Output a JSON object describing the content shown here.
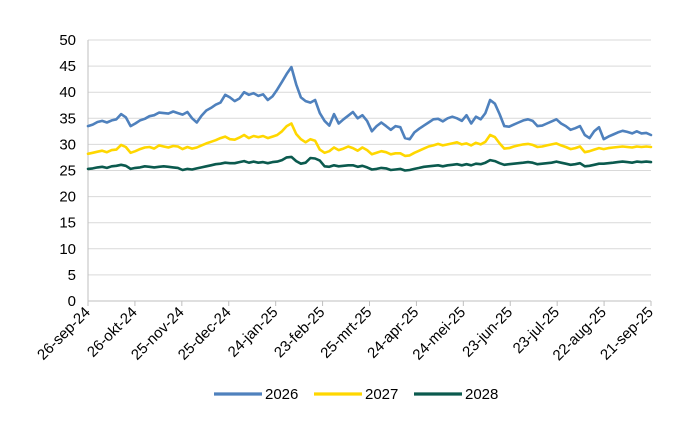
{
  "chart_data": {
    "type": "line",
    "title": "",
    "xlabel": "",
    "ylabel": "",
    "ylim": [
      0,
      50
    ],
    "yticks": [
      0,
      5,
      10,
      15,
      20,
      25,
      30,
      35,
      40,
      45,
      50
    ],
    "grid": "horizontal",
    "legend_position": "bottom",
    "x_tick_labels": [
      "26-sep-24",
      "26-okt-24",
      "25-nov-24",
      "25-dec-24",
      "24-jan-25",
      "23-feb-25",
      "25-mrt-25",
      "24-apr-25",
      "24-mei-25",
      "23-jun-25",
      "23-jul-25",
      "22-aug-25",
      "21-sep-25"
    ],
    "series": [
      {
        "name": "2026",
        "color": "#4f81bd",
        "values": [
          33.5,
          33.8,
          34.3,
          34.5,
          34.2,
          34.6,
          34.8,
          35.8,
          35.2,
          33.5,
          34.0,
          34.6,
          34.9,
          35.4,
          35.6,
          36.1,
          36.0,
          35.9,
          36.3,
          36.0,
          35.7,
          36.2,
          35.0,
          34.2,
          35.5,
          36.5,
          37.0,
          37.6,
          38.0,
          39.5,
          39.0,
          38.3,
          38.8,
          40.0,
          39.5,
          39.8,
          39.3,
          39.6,
          38.5,
          39.2,
          40.5,
          42.0,
          43.5,
          44.8,
          41.5,
          39.0,
          38.3,
          38.0,
          38.5,
          36.0,
          34.5,
          33.6,
          35.8,
          34.0,
          34.8,
          35.5,
          36.2,
          35.0,
          35.6,
          34.5,
          32.5,
          33.5,
          34.2,
          33.5,
          32.8,
          33.5,
          33.3,
          31.2,
          31.0,
          32.3,
          33.0,
          33.6,
          34.2,
          34.8,
          34.9,
          34.4,
          35.0,
          35.3,
          35.0,
          34.5,
          35.6,
          34.0,
          35.3,
          34.8,
          36.0,
          38.5,
          37.8,
          35.8,
          33.5,
          33.4,
          33.8,
          34.2,
          34.6,
          34.8,
          34.5,
          33.5,
          33.6,
          34.0,
          34.4,
          34.8,
          34.0,
          33.5,
          32.8,
          33.1,
          33.5,
          31.8,
          31.2,
          32.5,
          33.3,
          31.0,
          31.5,
          31.9,
          32.3,
          32.6,
          32.4,
          32.1,
          32.5,
          32.1,
          32.2,
          31.8
        ]
      },
      {
        "name": "2027",
        "color": "#ffd700",
        "values": [
          28.2,
          28.4,
          28.6,
          28.8,
          28.5,
          28.9,
          29.0,
          29.9,
          29.5,
          28.4,
          28.7,
          29.1,
          29.4,
          29.5,
          29.2,
          29.8,
          29.6,
          29.4,
          29.7,
          29.6,
          29.1,
          29.5,
          29.2,
          29.4,
          29.8,
          30.2,
          30.5,
          30.8,
          31.2,
          31.5,
          31.0,
          30.9,
          31.3,
          31.8,
          31.2,
          31.6,
          31.4,
          31.6,
          31.2,
          31.5,
          31.8,
          32.5,
          33.5,
          34.0,
          32.0,
          31.0,
          30.4,
          31.0,
          30.7,
          29.0,
          28.4,
          28.7,
          29.4,
          28.9,
          29.2,
          29.6,
          29.3,
          28.8,
          29.4,
          28.9,
          28.1,
          28.4,
          28.7,
          28.5,
          28.1,
          28.3,
          28.3,
          27.8,
          27.9,
          28.4,
          28.8,
          29.2,
          29.6,
          29.8,
          30.1,
          29.8,
          30.0,
          30.2,
          30.4,
          30.0,
          30.2,
          29.8,
          30.3,
          30.0,
          30.5,
          31.8,
          31.4,
          30.2,
          29.2,
          29.3,
          29.6,
          29.8,
          30.0,
          30.1,
          29.9,
          29.5,
          29.6,
          29.8,
          30.0,
          30.2,
          29.8,
          29.5,
          29.1,
          29.3,
          29.6,
          28.5,
          28.7,
          29.0,
          29.3,
          29.1,
          29.3,
          29.4,
          29.5,
          29.6,
          29.5,
          29.4,
          29.6,
          29.5,
          29.6,
          29.5
        ]
      },
      {
        "name": "2028",
        "color": "#0b5a4e",
        "values": [
          25.3,
          25.4,
          25.6,
          25.7,
          25.5,
          25.8,
          25.9,
          26.1,
          25.9,
          25.3,
          25.5,
          25.6,
          25.8,
          25.7,
          25.6,
          25.7,
          25.8,
          25.7,
          25.6,
          25.5,
          25.1,
          25.3,
          25.2,
          25.4,
          25.6,
          25.8,
          26.0,
          26.2,
          26.3,
          26.5,
          26.4,
          26.4,
          26.6,
          26.8,
          26.5,
          26.7,
          26.5,
          26.6,
          26.4,
          26.6,
          26.7,
          27.0,
          27.5,
          27.6,
          26.8,
          26.3,
          26.5,
          27.4,
          27.3,
          26.9,
          25.8,
          25.7,
          26.0,
          25.8,
          25.9,
          26.0,
          26.0,
          25.7,
          25.9,
          25.6,
          25.2,
          25.3,
          25.5,
          25.4,
          25.1,
          25.2,
          25.3,
          25.0,
          25.1,
          25.3,
          25.5,
          25.7,
          25.8,
          25.9,
          26.0,
          25.8,
          26.0,
          26.1,
          26.2,
          26.0,
          26.2,
          26.0,
          26.3,
          26.2,
          26.5,
          27.0,
          26.8,
          26.4,
          26.1,
          26.2,
          26.3,
          26.4,
          26.5,
          26.6,
          26.5,
          26.2,
          26.3,
          26.4,
          26.5,
          26.7,
          26.5,
          26.3,
          26.1,
          26.2,
          26.4,
          25.8,
          25.9,
          26.1,
          26.3,
          26.3,
          26.4,
          26.5,
          26.6,
          26.7,
          26.6,
          26.5,
          26.7,
          26.6,
          26.7,
          26.6
        ]
      }
    ]
  }
}
